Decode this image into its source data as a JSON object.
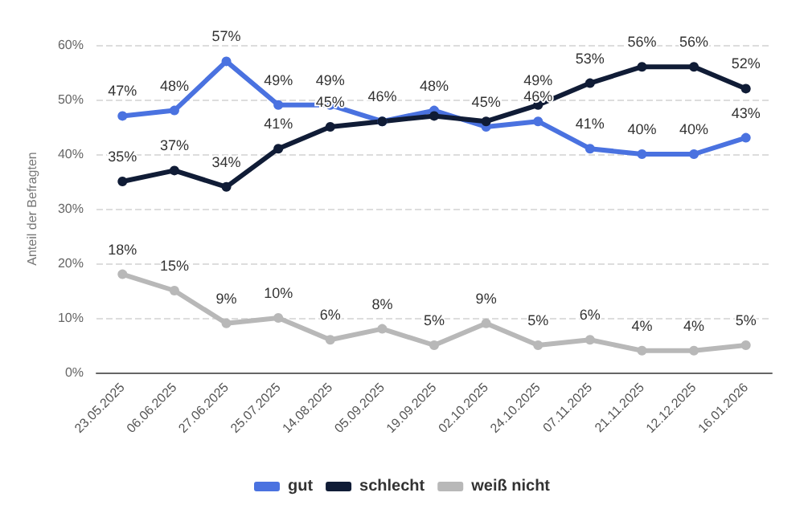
{
  "chart_data": {
    "type": "line",
    "ylabel": "Anteil der Befragten",
    "categories": [
      "23.05.2025",
      "06.06.2025",
      "27.06.2025",
      "25.07.2025",
      "14.08.2025",
      "05.09.2025",
      "19.09.2025",
      "02.10.2025",
      "24.10.2025",
      "07.11.2025",
      "21.11.2025",
      "12.12.2025",
      "16.01.2026"
    ],
    "series": [
      {
        "name": "gut",
        "color": "#4a72e0",
        "values": [
          47,
          48,
          57,
          49,
          49,
          46,
          48,
          45,
          46,
          41,
          40,
          40,
          43
        ],
        "value_labels": [
          "47%",
          "48%",
          "57%",
          "49%",
          "49%",
          "46%",
          "48%",
          "45%",
          "46%",
          "41%",
          "40%",
          "40%",
          "43%"
        ]
      },
      {
        "name": "schlecht",
        "color": "#101c36",
        "values": [
          35,
          37,
          34,
          41,
          45,
          46,
          47,
          46,
          49,
          53,
          56,
          56,
          52
        ],
        "value_labels": [
          "35%",
          "37%",
          "34%",
          "41%",
          "45%",
          null,
          null,
          null,
          "49%",
          "53%",
          "56%",
          "56%",
          "52%"
        ]
      },
      {
        "name": "weiß nicht",
        "color": "#b8b8b8",
        "values": [
          18,
          15,
          9,
          10,
          6,
          8,
          5,
          9,
          5,
          6,
          4,
          4,
          5
        ],
        "value_labels": [
          "18%",
          "15%",
          "9%",
          "10%",
          "6%",
          "8%",
          "5%",
          "9%",
          "5%",
          "6%",
          "4%",
          "4%",
          "5%"
        ]
      }
    ],
    "ylim": [
      0,
      60
    ],
    "yticks": [
      {
        "value": 0,
        "label": "0%"
      },
      {
        "value": 10,
        "label": "10%"
      },
      {
        "value": 20,
        "label": "20%"
      },
      {
        "value": 30,
        "label": "30%"
      },
      {
        "value": 40,
        "label": "40%"
      },
      {
        "value": 50,
        "label": "50%"
      },
      {
        "value": 60,
        "label": "60%"
      }
    ],
    "grid": "y",
    "legend": "bottom",
    "marker": "circle",
    "line_style": "solid"
  }
}
